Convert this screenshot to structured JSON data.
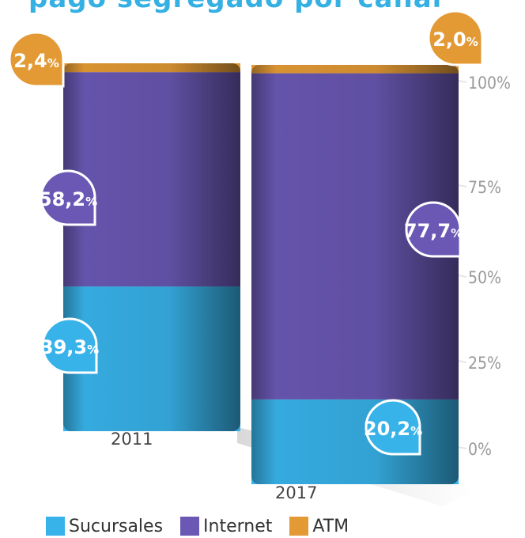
{
  "title": "pago segregado por canal",
  "chart_data": {
    "type": "bar",
    "stacked": true,
    "categories": [
      "2011",
      "2017"
    ],
    "series": [
      {
        "name": "Sucursales",
        "values": [
          39.3,
          20.2
        ],
        "labels": [
          "39,3",
          "20,2"
        ],
        "color": "#38b3ea"
      },
      {
        "name": "Internet",
        "values": [
          58.2,
          77.7
        ],
        "labels": [
          "58,2",
          "77,7"
        ],
        "color": "#6a58b4"
      },
      {
        "name": "ATM",
        "values": [
          2.4,
          2.0
        ],
        "labels": [
          "2,4",
          "2,0"
        ],
        "color": "#e39a35"
      }
    ],
    "label_suffix": "%",
    "yticks": [
      "0%",
      "25%",
      "50%",
      "75%",
      "100%"
    ],
    "ylim": [
      0,
      100
    ],
    "legend": "bottom"
  }
}
